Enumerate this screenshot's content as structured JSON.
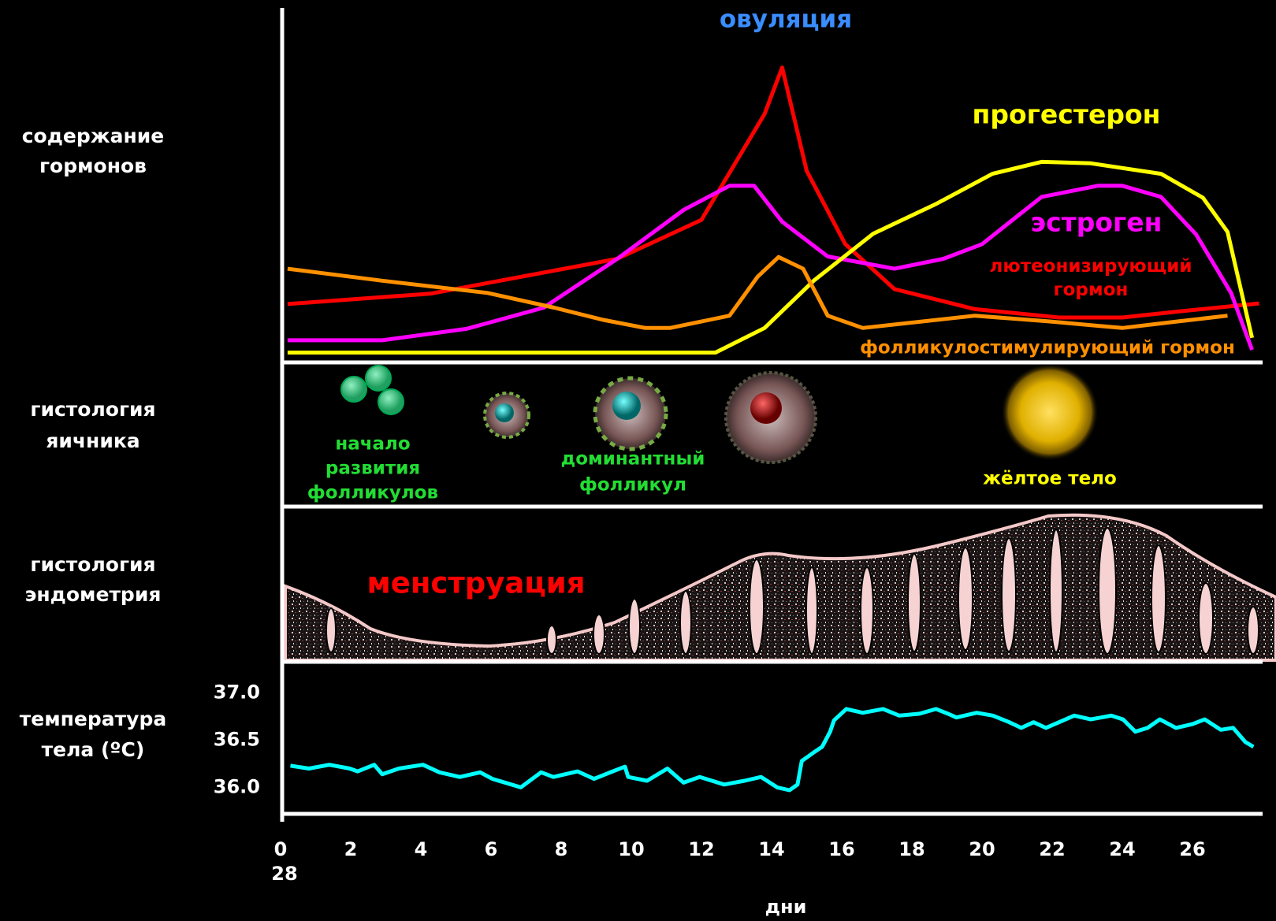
{
  "row_labels": [
    [
      "содержание",
      "гормонов"
    ],
    [
      "гистология",
      "яичника"
    ],
    [
      "гистология",
      "эндометрия"
    ],
    [
      "температура",
      "тела (ºC)"
    ]
  ],
  "ovary": {
    "follicle_start": [
      "начало",
      "развития",
      "фолликулов"
    ],
    "dominant_follicle": [
      "доминантный",
      "фолликул"
    ],
    "corpus_luteum": "жёлтое тело"
  },
  "endometrium": {
    "menstruation": "менструация"
  },
  "chart_data": [
    {
      "type": "line",
      "annotation": "овуляция",
      "xlim": [
        0,
        28
      ],
      "ylim": [
        0,
        100
      ],
      "series": [
        {
          "name": "лютеонизирующий гормон",
          "color": "#ff0000",
          "x": [
            0.2,
            4.3,
            9.6,
            12,
            13.8,
            14.3,
            15,
            16.1,
            17.5,
            19.8,
            22.2,
            24,
            25.6,
            27.9
          ],
          "values": [
            19.5,
            23,
            34.6,
            47.6,
            83,
            98.5,
            64,
            39.5,
            24.5,
            17.8,
            15,
            15,
            17,
            19.7
          ]
        },
        {
          "name": "эстроген",
          "color": "#ff00ff",
          "x": [
            0.2,
            2.9,
            5.3,
            7.5,
            9.6,
            11.5,
            12.8,
            13.5,
            14.3,
            15.6,
            17.5,
            18.9,
            20,
            21.7,
            23.3,
            24,
            25.1,
            26.1,
            27.1,
            27.7
          ],
          "values": [
            7.4,
            7.4,
            11.2,
            18.3,
            34.6,
            51,
            59,
            59,
            47,
            35.4,
            31.3,
            34.6,
            39.5,
            55.3,
            59,
            59,
            55.3,
            42.8,
            23.2,
            4.2
          ]
        },
        {
          "name": "прогестерон",
          "color": "#ffff00",
          "x": [
            0.2,
            12.4,
            13.8,
            15.2,
            16.9,
            18.7,
            20.3,
            21.7,
            23.1,
            25.1,
            26.3,
            27,
            27.7
          ],
          "values": [
            3.3,
            3.3,
            11.5,
            27.3,
            43,
            53,
            63,
            67,
            66.5,
            63,
            55,
            43.6,
            8.2
          ]
        },
        {
          "name": "фолликулостимулирующий гормон",
          "color": "#ff9000",
          "x": [
            0.2,
            2.9,
            5.9,
            7.8,
            9.2,
            10.4,
            11.1,
            12.8,
            13.6,
            14.2,
            14.9,
            15.6,
            16.6,
            19.8,
            21.9,
            24,
            25.6,
            27
          ],
          "values": [
            31.3,
            27.3,
            23.2,
            18.3,
            14.2,
            11.5,
            11.5,
            15.6,
            28.6,
            35.2,
            31.3,
            15.6,
            11.5,
            15.6,
            13.7,
            11.5,
            13.7,
            15.6
          ]
        }
      ]
    },
    {
      "type": "line",
      "xlabel": "дни",
      "color": "#00ffff",
      "xlim": [
        0,
        28
      ],
      "ylim": [
        35.72,
        37.33
      ],
      "xticks": [
        0,
        2,
        4,
        6,
        8,
        10,
        12,
        14,
        16,
        18,
        20,
        22,
        24,
        26
      ],
      "xtick_cycle_end": "28",
      "yticks": [
        {
          "value": 36,
          "label": "36.0"
        },
        36.5,
        {
          "value": 37,
          "label": "37.0"
        }
      ],
      "x": [
        0.28,
        0.81,
        1.39,
        1.97,
        2.2,
        2.67,
        2.9,
        3.37,
        4.06,
        4.53,
        5.11,
        5.69,
        6.04,
        6.85,
        7.43,
        7.78,
        8.47,
        8.94,
        9.4,
        9.82,
        9.91,
        10.45,
        11.03,
        11.49,
        11.95,
        12.65,
        13.23,
        13.7,
        14.16,
        14.51,
        14.74,
        14.86,
        15.2,
        15.44,
        15.67,
        15.78,
        16.13,
        16.6,
        17.18,
        17.64,
        18.22,
        18.69,
        19.03,
        19.27,
        19.85,
        20.31,
        20.78,
        21.12,
        21.47,
        21.82,
        22.63,
        23.1,
        23.68,
        24.02,
        24.37,
        24.72,
        25.07,
        25.53,
        26.0,
        26.35,
        26.81,
        27.16,
        27.51,
        27.74
      ],
      "values": [
        36.23,
        36.2,
        36.24,
        36.2,
        36.17,
        36.24,
        36.14,
        36.2,
        36.24,
        36.16,
        36.11,
        36.16,
        36.09,
        36.0,
        36.16,
        36.11,
        36.17,
        36.09,
        36.16,
        36.22,
        36.11,
        36.07,
        36.2,
        36.05,
        36.11,
        36.03,
        36.07,
        36.11,
        36.0,
        35.97,
        36.03,
        36.28,
        36.37,
        36.43,
        36.59,
        36.71,
        36.83,
        36.79,
        36.83,
        36.76,
        36.78,
        36.83,
        36.78,
        36.74,
        36.79,
        36.76,
        36.69,
        36.63,
        36.69,
        36.63,
        36.76,
        36.72,
        36.76,
        36.72,
        36.59,
        36.63,
        36.72,
        36.63,
        36.67,
        36.72,
        36.61,
        36.63,
        36.48,
        36.43
      ]
    }
  ]
}
